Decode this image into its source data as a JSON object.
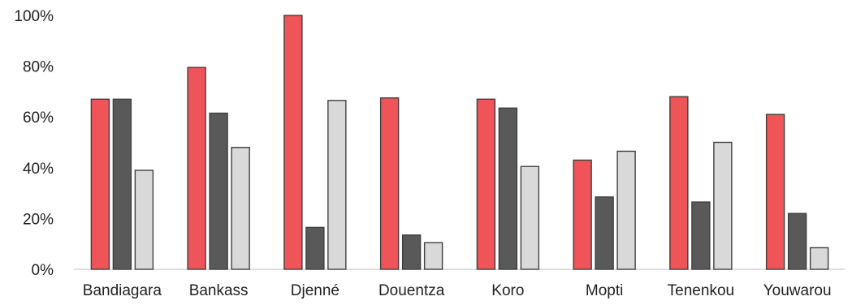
{
  "chart_data": {
    "type": "bar",
    "title": "",
    "xlabel": "",
    "ylabel": "",
    "ylim": [
      0,
      100
    ],
    "yticks": [
      "0%",
      "20%",
      "40%",
      "60%",
      "80%",
      "100%"
    ],
    "ytick_values": [
      0,
      20,
      40,
      60,
      80,
      100
    ],
    "grid": false,
    "legend": "none",
    "categories": [
      "Bandiagara",
      "Bankass",
      "Djenné",
      "Douentza",
      "Koro",
      "Mopti",
      "Tenenkou",
      "Youwarou"
    ],
    "series": [
      {
        "color": "#ef5458",
        "values": [
          67,
          79.5,
          100,
          67.5,
          67,
          43,
          68,
          61
        ]
      },
      {
        "color": "#595959",
        "values": [
          67,
          61.5,
          16.5,
          13.5,
          63.5,
          28.5,
          26.5,
          22
        ]
      },
      {
        "color": "#d9d9d9",
        "values": [
          39,
          48,
          66.5,
          10.5,
          40.5,
          46.5,
          50,
          8.5
        ]
      }
    ]
  }
}
